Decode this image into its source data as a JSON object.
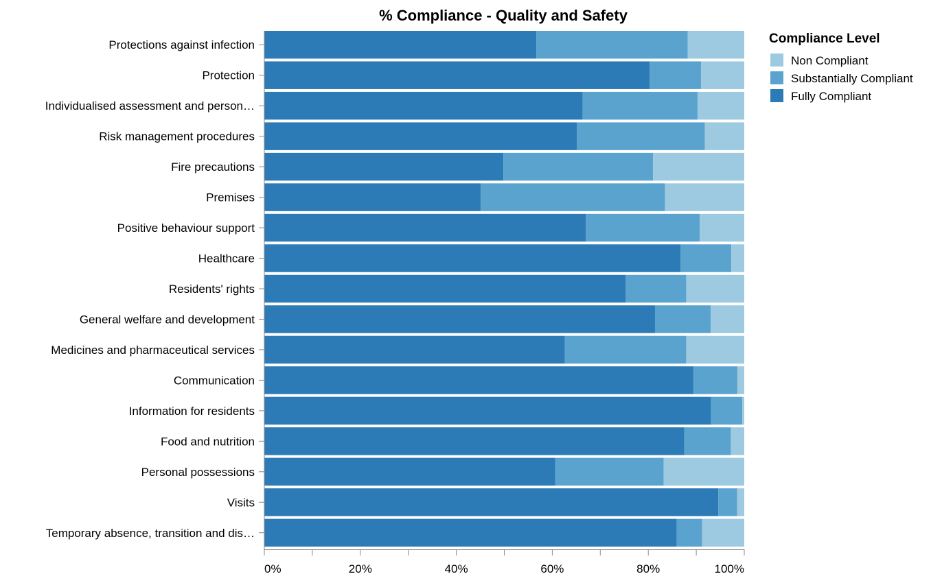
{
  "chart_data": {
    "type": "bar",
    "orientation": "horizontal",
    "stacked": "normalize",
    "title": "% Compliance - Quality and Safety",
    "xlabel": "",
    "ylabel": "",
    "xlim": [
      0,
      100
    ],
    "x_ticks": [
      "0%",
      "20%",
      "40%",
      "60%",
      "80%",
      "100%"
    ],
    "legend": {
      "title": "Compliance Level",
      "position": "right"
    },
    "categories": [
      "Protections against infection",
      "Protection",
      "Individualised assessment and person…",
      "Risk management procedures",
      "Fire precautions",
      "Premises",
      "Positive behaviour support",
      "Healthcare",
      "Residents' rights",
      "General welfare and development",
      "Medicines and pharmaceutical services",
      "Communication",
      "Information for residents",
      "Food and nutrition",
      "Personal possessions",
      "Visits",
      "Temporary absence, transition and dis…"
    ],
    "series": [
      {
        "name": "Fully Compliant",
        "color": "#2c7bb6",
        "values": [
          56.7,
          80.3,
          66.3,
          65.1,
          49.8,
          45.1,
          67.0,
          86.7,
          75.3,
          81.4,
          62.6,
          89.4,
          93.1,
          87.5,
          60.6,
          94.6,
          85.9
        ]
      },
      {
        "name": "Substantially Compliant",
        "color": "#5aa3cf",
        "values": [
          31.5,
          10.7,
          24.0,
          26.7,
          31.2,
          38.4,
          23.7,
          10.6,
          12.6,
          11.6,
          25.3,
          9.2,
          6.5,
          9.7,
          22.6,
          3.9,
          5.3
        ]
      },
      {
        "name": "Non Compliant",
        "color": "#9ecae1",
        "values": [
          11.8,
          9.0,
          9.7,
          8.2,
          19.0,
          16.5,
          9.3,
          2.7,
          12.1,
          7.0,
          12.1,
          1.4,
          0.4,
          2.8,
          16.8,
          1.5,
          8.8
        ]
      }
    ],
    "legend_order": [
      "Non Compliant",
      "Substantially Compliant",
      "Fully Compliant"
    ]
  }
}
